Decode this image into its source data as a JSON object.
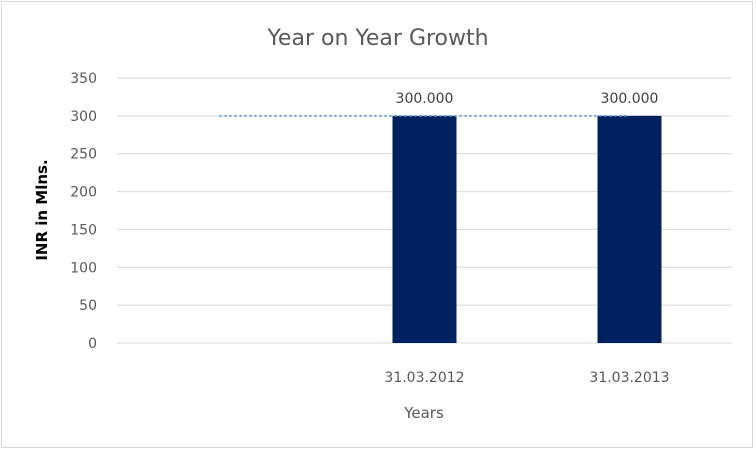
{
  "chart_data": {
    "type": "bar",
    "title": "Year on Year Growth",
    "xlabel": "Years",
    "ylabel": "INR in Mlns.",
    "categories": [
      "",
      "31.03.2012",
      "31.03.2013"
    ],
    "series": [
      {
        "values": [
          null,
          300,
          300
        ],
        "color": "#002060",
        "data_labels": [
          "",
          "300.000",
          "300.000"
        ]
      }
    ],
    "trendline": {
      "values": [
        300,
        300,
        300
      ],
      "style": "dotted",
      "color": "#5b9bd5"
    },
    "ylim": [
      0,
      350
    ],
    "yticks": [
      0,
      50,
      100,
      150,
      200,
      250,
      300,
      350
    ],
    "grid": true,
    "legend": "none"
  }
}
